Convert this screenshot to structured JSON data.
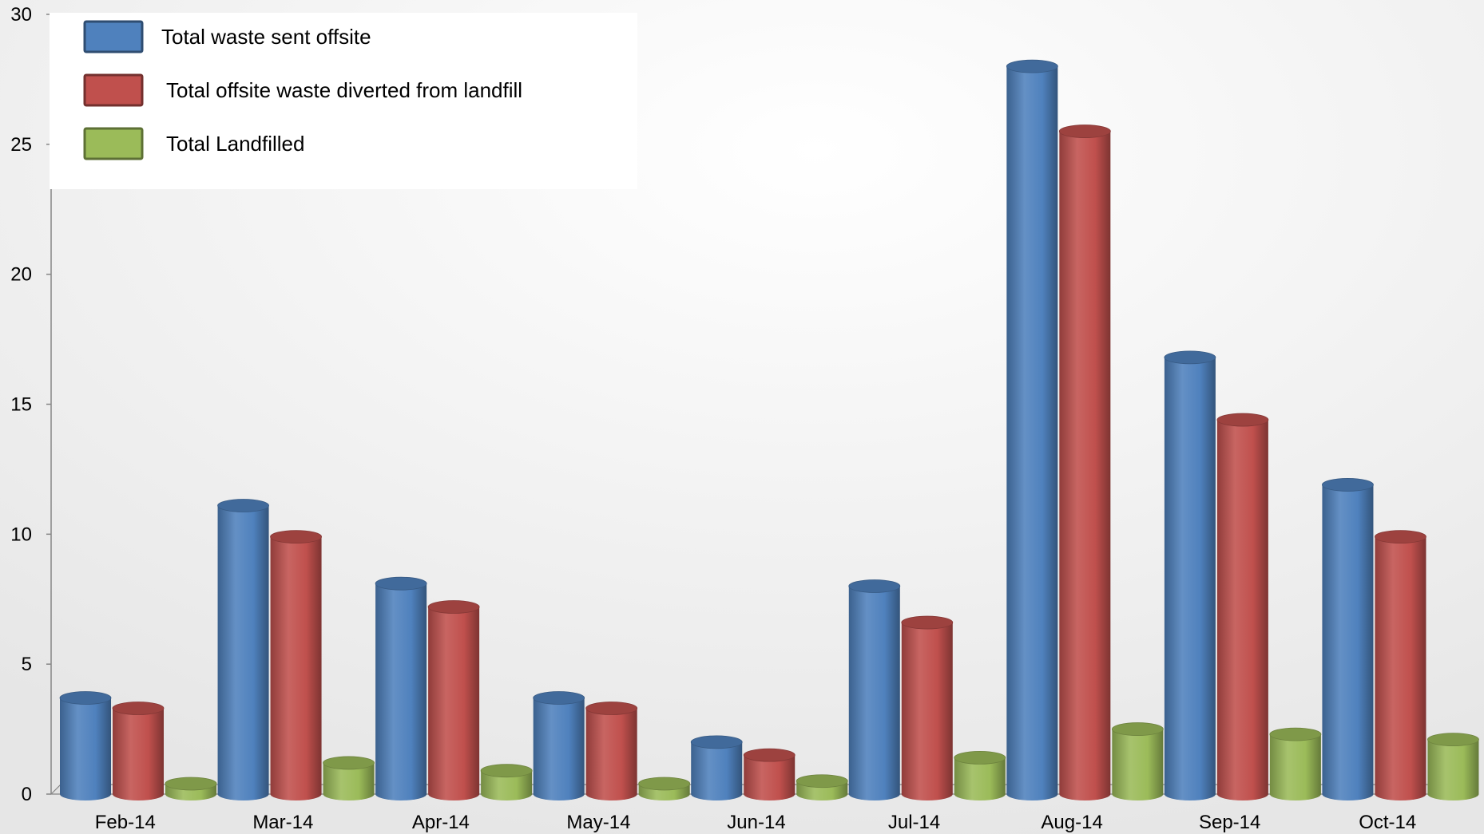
{
  "chart_data": {
    "type": "bar",
    "categories": [
      "Feb-14",
      "Mar-14",
      "Apr-14",
      "May-14",
      "Jun-14",
      "Jul-14",
      "Aug-14",
      "Sep-14",
      "Oct-14"
    ],
    "series": [
      {
        "name": "Total waste sent offsite",
        "values": [
          3.7,
          11.1,
          8.1,
          3.7,
          2.0,
          8.0,
          28.0,
          16.8,
          11.9
        ],
        "color": "#4F81BD"
      },
      {
        "name": "Total offsite waste diverted from landfill",
        "values": [
          3.3,
          9.9,
          7.2,
          3.3,
          1.5,
          6.6,
          25.5,
          14.4,
          9.9
        ],
        "color": "#C0504D"
      },
      {
        "name": "Total Landfilled",
        "values": [
          0.4,
          1.2,
          0.9,
          0.4,
          0.5,
          1.4,
          2.5,
          2.3,
          2.1
        ],
        "color": "#9BBB59"
      }
    ],
    "y_ticks": [
      "0",
      "5",
      "10",
      "15",
      "20",
      "25",
      "30"
    ],
    "ylim": [
      0,
      30
    ],
    "title": "",
    "xlabel": "",
    "ylabel": "",
    "legend_position": "top-left",
    "grid": false,
    "bar_style": "3d-cylinder"
  }
}
